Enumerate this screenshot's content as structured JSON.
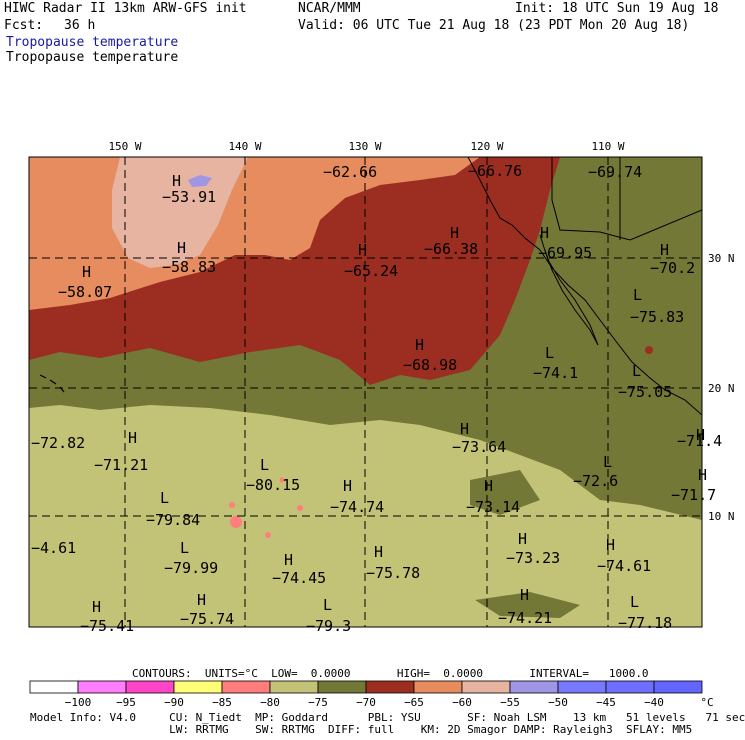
{
  "header": {
    "title": "HIWC Radar II 13km ARW-GFS init",
    "org": "NCAR/MMM",
    "init": "Init: 18 UTC Sun 19 Aug 18",
    "fcst_label": "Fcst:",
    "fcst_value": "36 h",
    "valid": "Valid: 06 UTC Tue 21 Aug 18 (23 PDT Mon 20 Aug 18)",
    "field_1": "Tropopause temperature",
    "field_2": "Tropopause temperature"
  },
  "map": {
    "lon_labels": [
      "150 W",
      "140 W",
      "130 W",
      "120 W",
      "110 W"
    ],
    "lat_labels": [
      "30 N",
      "20 N",
      "10 N"
    ],
    "extrema": [
      {
        "kind": "H",
        "value": "-53.91"
      },
      {
        "kind": "H",
        "value": "-58.83"
      },
      {
        "kind": "H",
        "value": "-58.07"
      },
      {
        "kind": "",
        "value": "-62.66"
      },
      {
        "kind": "",
        "value": "-66.76"
      },
      {
        "kind": "",
        "value": "-69.74"
      },
      {
        "kind": "H",
        "value": "-66.38"
      },
      {
        "kind": "H",
        "value": "-65.24"
      },
      {
        "kind": "H",
        "value": "-69.95"
      },
      {
        "kind": "H",
        "value": "-70.2"
      },
      {
        "kind": "L",
        "value": "-75.83"
      },
      {
        "kind": "H",
        "value": "-68.98"
      },
      {
        "kind": "L",
        "value": "-74.1"
      },
      {
        "kind": "L",
        "value": "-75.05"
      },
      {
        "kind": "",
        "value": "-72.82"
      },
      {
        "kind": "H",
        "value": "-71.21"
      },
      {
        "kind": "H",
        "value": "-73.64"
      },
      {
        "kind": "H",
        "value": "-71.4"
      },
      {
        "kind": "L",
        "value": "-80.15"
      },
      {
        "kind": "L",
        "value": "-72.6"
      },
      {
        "kind": "H",
        "value": "-74.74"
      },
      {
        "kind": "H",
        "value": "-73.14"
      },
      {
        "kind": "H",
        "value": "-71.7"
      },
      {
        "kind": "L",
        "value": "-79.84"
      },
      {
        "kind": "",
        "value": "-4.61"
      },
      {
        "kind": "L",
        "value": "-79.99"
      },
      {
        "kind": "H",
        "value": "-74.45"
      },
      {
        "kind": "H",
        "value": "-75.78"
      },
      {
        "kind": "H",
        "value": "-73.23"
      },
      {
        "kind": "H",
        "value": "-74.61"
      },
      {
        "kind": "H",
        "value": "-75.41"
      },
      {
        "kind": "H",
        "value": "-75.74"
      },
      {
        "kind": "L",
        "value": "-79.3"
      },
      {
        "kind": "H",
        "value": "-74.21"
      },
      {
        "kind": "L",
        "value": "-77.18"
      }
    ]
  },
  "footer": {
    "contours": "CONTOURS:  UNITS=°C  LOW=  0.0000       HIGH=  0.0000       INTERVAL=   1000.0",
    "colorbar": {
      "colors": [
        "#ffffff",
        "#ff7dff",
        "#ff46c8",
        "#ffff78",
        "#ff7d7d",
        "#c3c378",
        "#737837",
        "#9b2d21",
        "#e68c5f",
        "#e6b4a0",
        "#a096e6",
        "#7878ff",
        "#6e6eff",
        "#6464ff"
      ],
      "tick_labels": [
        "-100",
        "-95",
        "-90",
        "-85",
        "-80",
        "-75",
        "-70",
        "-65",
        "-60",
        "-55",
        "-50",
        "-45",
        "-40"
      ],
      "unit": "°C"
    },
    "model_line_1": "Model Info: V4.0     CU: N_Tiedt  MP: Goddard      PBL: YSU       SF: Noah LSM    13 km   51 levels   71 sec",
    "model_line_2": "                     LW: RRTMG    SW: RRTMG  DIFF: full    KM: 2D Smagor DAMP: Rayleigh3  SFLAY: MM5"
  }
}
